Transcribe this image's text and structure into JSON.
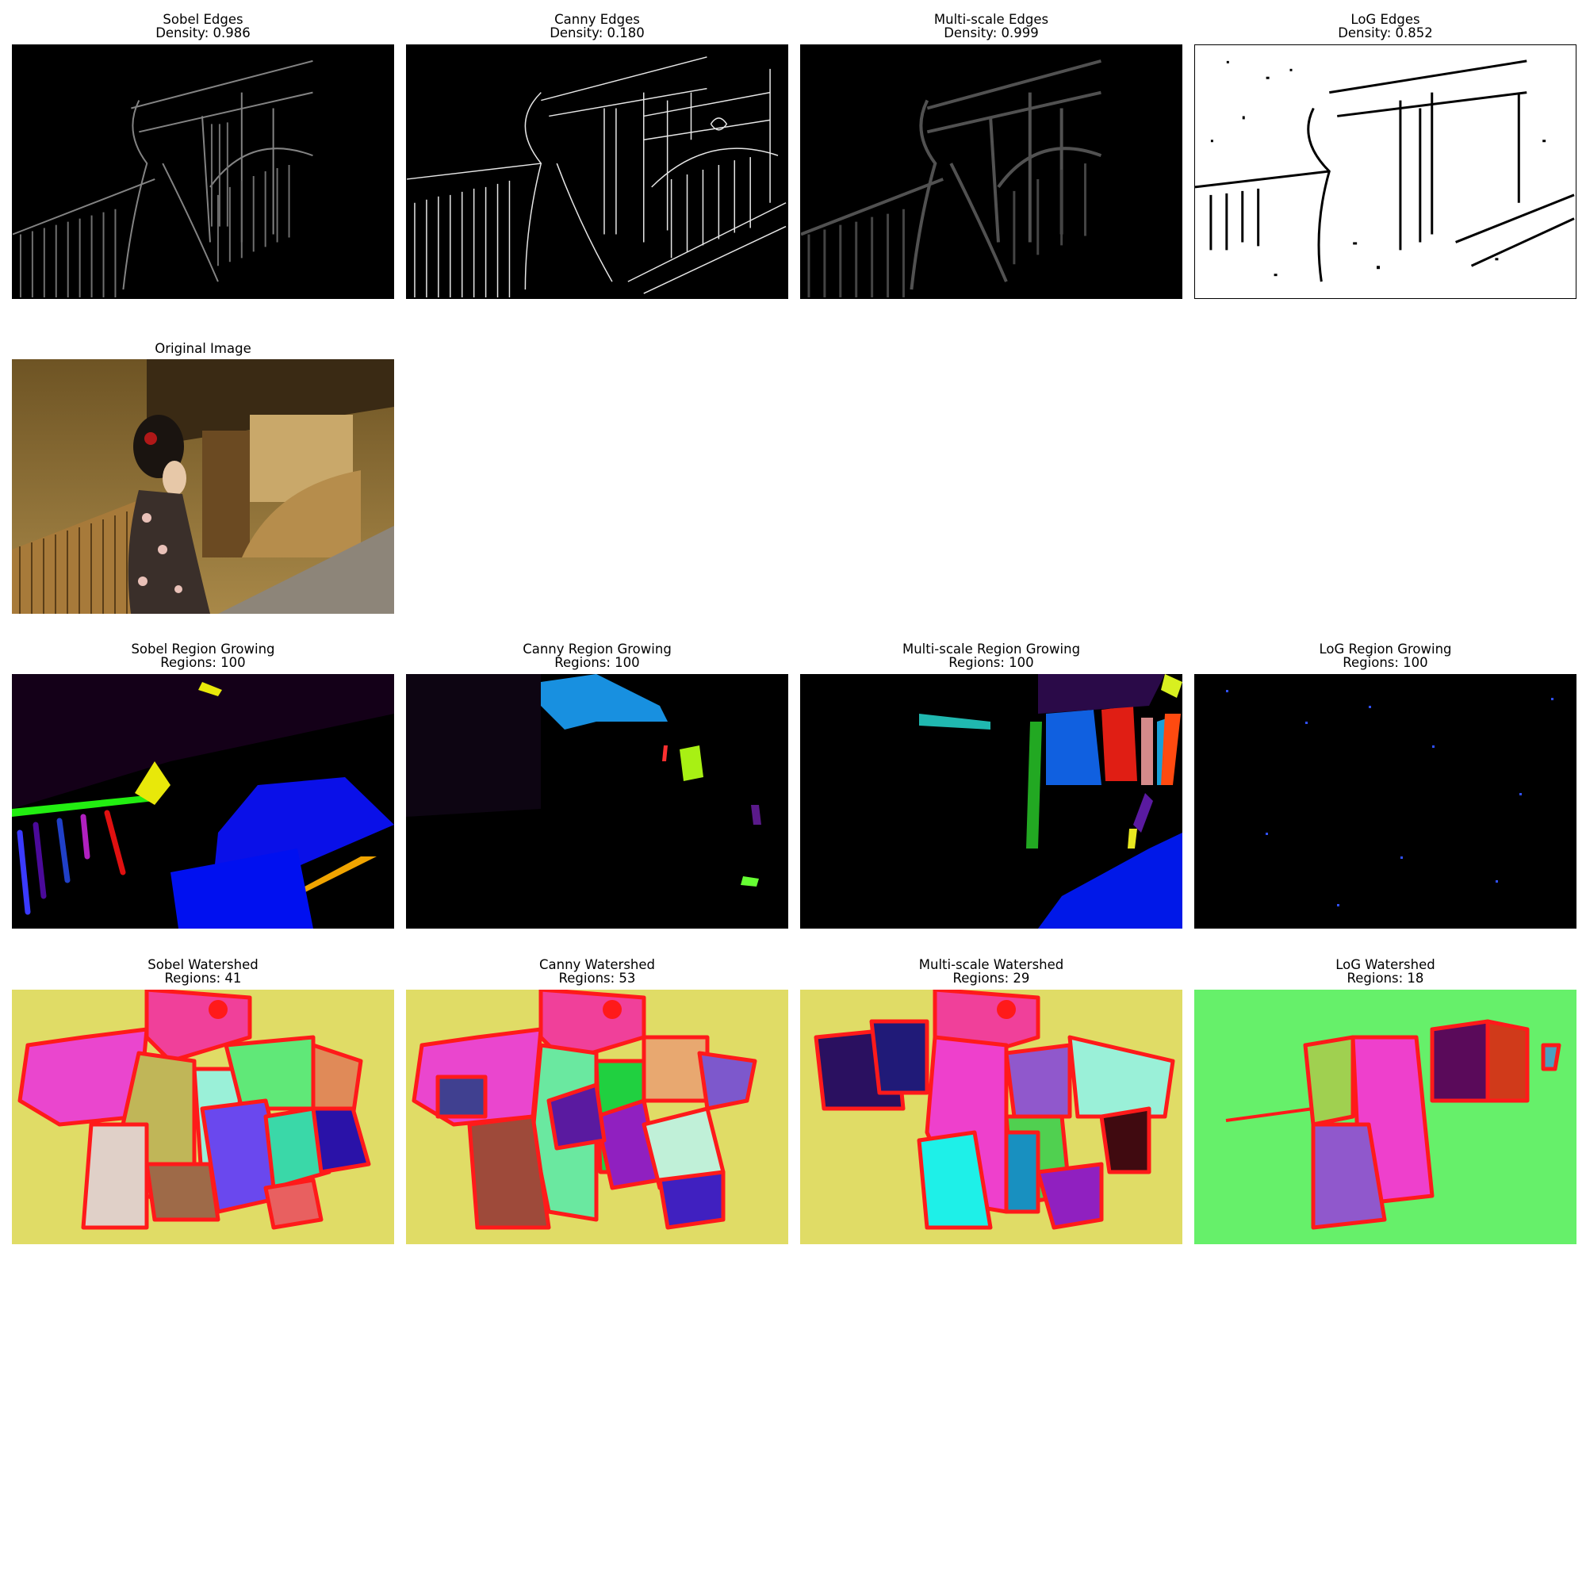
{
  "figure": {
    "row_edges": [
      {
        "title": "Sobel Edges",
        "stat": "Density: 0.986"
      },
      {
        "title": "Canny Edges",
        "stat": "Density: 0.180"
      },
      {
        "title": "Multi-scale Edges",
        "stat": "Density: 0.999"
      },
      {
        "title": "LoG Edges",
        "stat": "Density: 0.852"
      }
    ],
    "original": {
      "title": "Original Image"
    },
    "row_region_growing": [
      {
        "title": "Sobel Region Growing",
        "stat": "Regions: 100"
      },
      {
        "title": "Canny Region Growing",
        "stat": "Regions: 100"
      },
      {
        "title": "Multi-scale Region Growing",
        "stat": "Regions: 100"
      },
      {
        "title": "LoG Region Growing",
        "stat": "Regions: 100"
      }
    ],
    "row_watershed": [
      {
        "title": "Sobel Watershed",
        "stat": "Regions: 41"
      },
      {
        "title": "Canny Watershed",
        "stat": "Regions: 53"
      },
      {
        "title": "Multi-scale Watershed",
        "stat": "Regions: 29"
      },
      {
        "title": "LoG Watershed",
        "stat": "Regions: 18"
      }
    ]
  },
  "colors": {
    "watershed_background": "#e0dc66",
    "log_watershed_background": "#66f06a",
    "boundary": "#ff1a1a",
    "edges_background": "#000000",
    "log_edges_background": "#ffffff"
  }
}
